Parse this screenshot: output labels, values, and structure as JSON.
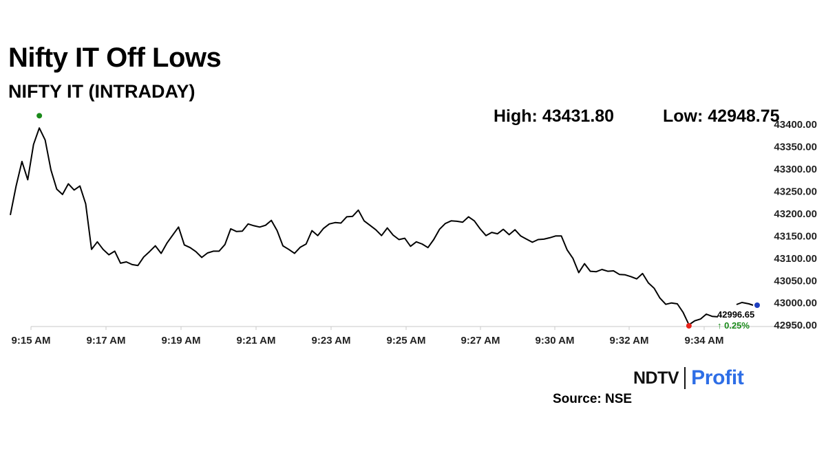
{
  "header": {
    "title": "Nifty IT Off Lows",
    "subtitle": "NIFTY IT (INTRADAY)"
  },
  "stats": {
    "high": "High: 43431.80",
    "low": "Low: 42948.75"
  },
  "footer": {
    "logo_ndtv": "NDTV",
    "logo_profit": "Profit",
    "source": "Source: NSE"
  },
  "colors": {
    "line": "#000000",
    "high_marker": "#1a8a1a",
    "low_marker": "#e8231b",
    "last_marker": "#1f3fbf",
    "change_positive": "#1a8a1a",
    "logo_profit": "#2e6ee6"
  },
  "chart_data": {
    "type": "line",
    "title": "NIFTY IT (INTRADAY)",
    "x_ticks": [
      "9:15 AM",
      "9:17 AM",
      "9:19 AM",
      "9:21 AM",
      "9:23 AM",
      "9:25 AM",
      "9:27 AM",
      "9:30 AM",
      "9:32 AM",
      "9:34 AM"
    ],
    "ylim": [
      42948.75,
      43400
    ],
    "y_ticks": [
      42950,
      43000,
      43050,
      43100,
      43150,
      43200,
      43250,
      43300,
      43350,
      43400
    ],
    "y_tick_labels": [
      "42950.00",
      "43000.00",
      "43050.00",
      "43100.00",
      "43150.00",
      "43200.00",
      "43250.00",
      "43300.00",
      "43350.00",
      "43400.00"
    ],
    "y_axis_side": "right",
    "grid": false,
    "series": [
      {
        "values": [
          43197,
          43262,
          43317,
          43276,
          43355,
          43392,
          43365,
          43298,
          43255,
          43243,
          43267,
          43253,
          43262,
          43222,
          43120,
          43137,
          43120,
          43108,
          43116,
          43089,
          43092,
          43086,
          43084,
          43103,
          43115,
          43128,
          43111,
          43134,
          43152,
          43170,
          43130,
          43124,
          43115,
          43102,
          43112,
          43116,
          43116,
          43131,
          43166,
          43160,
          43161,
          43177,
          43173,
          43170,
          43174,
          43185,
          43162,
          43128,
          43120,
          43111,
          43125,
          43132,
          43162,
          43151,
          43167,
          43177,
          43180,
          43179,
          43193,
          43194,
          43208,
          43184,
          43174,
          43164,
          43151,
          43168,
          43152,
          43142,
          43145,
          43127,
          43137,
          43132,
          43124,
          43142,
          43165,
          43178,
          43184,
          43183,
          43181,
          43193,
          43184,
          43166,
          43151,
          43158,
          43155,
          43165,
          43153,
          43164,
          43150,
          43143,
          43136,
          43142,
          43143,
          43146,
          43150,
          43150,
          43119,
          43100,
          43068,
          43088,
          43071,
          43070,
          43075,
          43071,
          43072,
          43064,
          43063,
          43059,
          43054,
          43066,
          43045,
          43033,
          43011,
          42997,
          43000,
          42998,
          42979,
          42951,
          42960,
          42964,
          42975,
          42970,
          42969
        ]
      }
    ],
    "high": 43431.8,
    "low": 42948.75,
    "last_value": "42996.65",
    "change": "0.25%",
    "change_direction": "up",
    "markers": [
      "high: green dot",
      "low: red dot",
      "last: blue dot"
    ]
  }
}
